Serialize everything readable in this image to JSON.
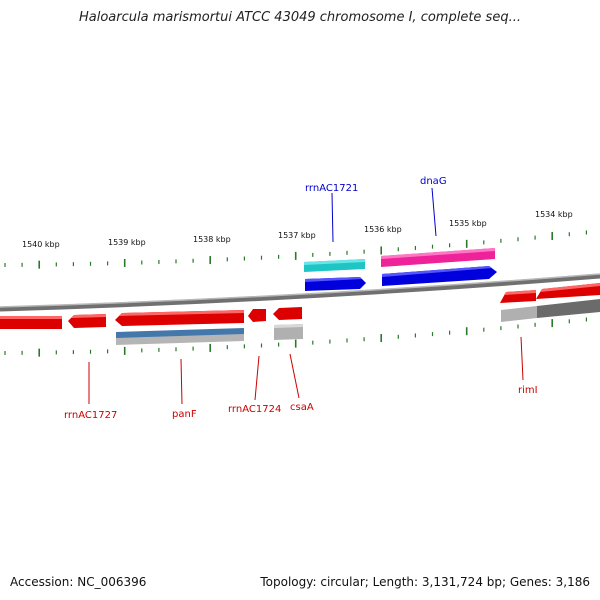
{
  "title": "Haloarcula marismortui ATCC 43049 chromosome I, complete seq...",
  "footer": {
    "accession": "Accession: NC_006396",
    "topology": "Topology: circular; Length: 3,131,724 bp; Genes: 3,186"
  },
  "colors": {
    "forward_gene": "#0000ee",
    "reverse_gene": "#ee0000",
    "rRNA": "#22cccc",
    "tRNA_like": "#ee2299",
    "pseudo_grey": "#a0a0a0",
    "dark_grey": "#666666",
    "steel_blue": "#4477aa",
    "tick": "#2a7a2a",
    "backbone": "#8c8c8c"
  },
  "scale_labels": [
    "1540 kbp",
    "1539 kbp",
    "1538 kbp",
    "1537 kbp",
    "1536 kbp",
    "1535 kbp",
    "1534 kbp"
  ],
  "gene_labels": {
    "forward": [
      "rrnAC1721",
      "dnaG"
    ],
    "reverse": [
      "rrnAC1727",
      "panF",
      "rrnAC1724",
      "csaA",
      "rimI"
    ]
  }
}
